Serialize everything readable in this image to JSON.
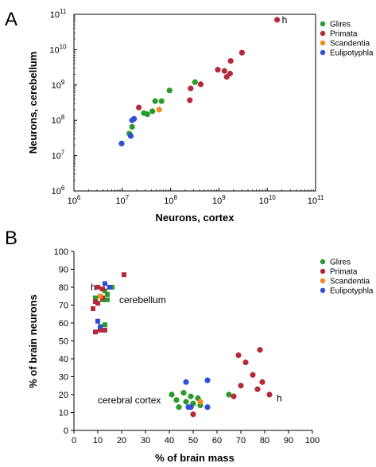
{
  "chart_data": [
    {
      "type": "scatter",
      "panel_label": "A",
      "xlabel": "Neurons, cortex",
      "ylabel": "Neurons, cerebellum",
      "x_scale": "log",
      "y_scale": "log",
      "xlim": [
        1000000,
        100000000000
      ],
      "ylim": [
        1000000,
        100000000000
      ],
      "x_ticks": [
        {
          "value": 1000000,
          "base": "10",
          "exp": "6"
        },
        {
          "value": 10000000,
          "base": "10",
          "exp": "7"
        },
        {
          "value": 100000000,
          "base": "10",
          "exp": "8"
        },
        {
          "value": 1000000000,
          "base": "10",
          "exp": "9"
        },
        {
          "value": 10000000000,
          "base": "10",
          "exp": "10"
        },
        {
          "value": 100000000000,
          "base": "10",
          "exp": "11"
        }
      ],
      "y_ticks": [
        {
          "value": 1000000,
          "base": "10",
          "exp": "6"
        },
        {
          "value": 10000000,
          "base": "10",
          "exp": "7"
        },
        {
          "value": 100000000,
          "base": "10",
          "exp": "8"
        },
        {
          "value": 1000000000,
          "base": "10",
          "exp": "9"
        },
        {
          "value": 10000000000,
          "base": "10",
          "exp": "10"
        },
        {
          "value": 100000000000,
          "base": "10",
          "exp": "11"
        }
      ],
      "legend_position": "top-right",
      "marker": "circle",
      "series": [
        {
          "name": "Glires",
          "color": "#2a9a2a",
          "points": [
            [
              14000000,
              42000000
            ],
            [
              16000000,
              65000000
            ],
            [
              28000000,
              160000000
            ],
            [
              33000000,
              148000000
            ],
            [
              42000000,
              180000000
            ],
            [
              48000000,
              350000000
            ],
            [
              65000000,
              350000000
            ],
            [
              95000000,
              700000000
            ],
            [
              320000000,
              1200000000
            ]
          ]
        },
        {
          "name": "Primata",
          "color": "#b52a3a",
          "points": [
            [
              22000000,
              230000000
            ],
            [
              250000000,
              370000000
            ],
            [
              260000000,
              800000000
            ],
            [
              420000000,
              1050000000
            ],
            [
              950000000,
              2700000000
            ],
            [
              1300000000,
              2500000000
            ],
            [
              1450000000,
              1700000000
            ],
            [
              1700000000,
              2100000000
            ],
            [
              1750000000,
              4800000000
            ],
            [
              3000000000,
              8200000000
            ],
            [
              16000000000,
              70000000000
            ]
          ]
        },
        {
          "name": "Scandentia",
          "color": "#f08a1e",
          "points": [
            [
              58000000,
              200000000
            ]
          ]
        },
        {
          "name": "Eulipotyphla",
          "color": "#2f4fd8",
          "points": [
            [
              9700000,
              22000000
            ],
            [
              15000000,
              36000000
            ],
            [
              16000000,
              100000000
            ],
            [
              17500000,
              110000000
            ]
          ]
        }
      ],
      "annotations": [
        {
          "text": "h",
          "x": 16000000000,
          "y": 70000000000
        }
      ]
    },
    {
      "type": "scatter",
      "panel_label": "B",
      "xlabel": "% of brain mass",
      "ylabel": "% of brain neurons",
      "xlim": [
        0,
        100
      ],
      "ylim": [
        0,
        100
      ],
      "x_ticks": [
        "0",
        "10",
        "20",
        "30",
        "40",
        "50",
        "60",
        "70",
        "80",
        "90",
        "100"
      ],
      "y_ticks": [
        "0",
        "10",
        "20",
        "30",
        "40",
        "50",
        "60",
        "70",
        "80",
        "90",
        "100"
      ],
      "legend_position": "top-right",
      "group_labels": [
        {
          "text": "cerebellum",
          "x": 19,
          "y": 73
        },
        {
          "text": "cerebral cortex",
          "x": 10,
          "y": 17
        }
      ],
      "series": [
        {
          "name": "Glires",
          "color": "#2a9a2a",
          "marker": "square",
          "group": "cerebellum",
          "points": [
            [
              9,
              74
            ],
            [
              12,
              73
            ],
            [
              13,
              78
            ],
            [
              14,
              76
            ],
            [
              16,
              80
            ],
            [
              13,
              59
            ],
            [
              14,
              73
            ]
          ]
        },
        {
          "name": "Primata",
          "color": "#b52a3a",
          "marker": "square",
          "group": "cerebellum",
          "points": [
            [
              8,
              68
            ],
            [
              9,
              72
            ],
            [
              10,
              71
            ],
            [
              12,
              74
            ],
            [
              11,
              56
            ],
            [
              9,
              55
            ],
            [
              10,
              80
            ],
            [
              12,
              79
            ],
            [
              21,
              87
            ],
            [
              13,
              56
            ]
          ]
        },
        {
          "name": "Scandentia",
          "color": "#f08a1e",
          "marker": "square",
          "group": "cerebellum",
          "points": [
            [
              11,
              75
            ]
          ]
        },
        {
          "name": "Eulipotyphla",
          "color": "#2f4fd8",
          "marker": "square",
          "group": "cerebellum",
          "points": [
            [
              10,
              61
            ],
            [
              11,
              58
            ],
            [
              13,
              82
            ],
            [
              15,
              80
            ]
          ]
        },
        {
          "name": "Glires",
          "color": "#2a9a2a",
          "marker": "circle",
          "group": "cerebral cortex",
          "points": [
            [
              41,
              20
            ],
            [
              43,
              17
            ],
            [
              44,
              13
            ],
            [
              46,
              21
            ],
            [
              47,
              16
            ],
            [
              49,
              19
            ],
            [
              50,
              15
            ],
            [
              52,
              18
            ],
            [
              53,
              14
            ],
            [
              65,
              20
            ]
          ]
        },
        {
          "name": "Primata",
          "color": "#b52a3a",
          "marker": "circle",
          "group": "cerebral cortex",
          "points": [
            [
              50,
              9
            ],
            [
              67,
              19
            ],
            [
              69,
              42
            ],
            [
              70,
              25
            ],
            [
              72,
              38
            ],
            [
              75,
              31
            ],
            [
              77,
              23
            ],
            [
              78,
              45
            ],
            [
              79,
              27
            ],
            [
              82,
              20
            ]
          ]
        },
        {
          "name": "Scandentia",
          "color": "#f08a1e",
          "marker": "circle",
          "group": "cerebral cortex",
          "points": [
            [
              53,
              16
            ]
          ]
        },
        {
          "name": "Eulipotyphla",
          "color": "#2f4fd8",
          "marker": "circle",
          "group": "cerebral cortex",
          "points": [
            [
              47,
              27
            ],
            [
              48,
              13
            ],
            [
              49,
              13
            ],
            [
              56,
              28
            ],
            [
              56,
              13
            ]
          ]
        }
      ],
      "annotations": [
        {
          "text": "h",
          "x": 7,
          "y": 80
        },
        {
          "text": "h",
          "x": 85,
          "y": 18
        }
      ]
    }
  ]
}
